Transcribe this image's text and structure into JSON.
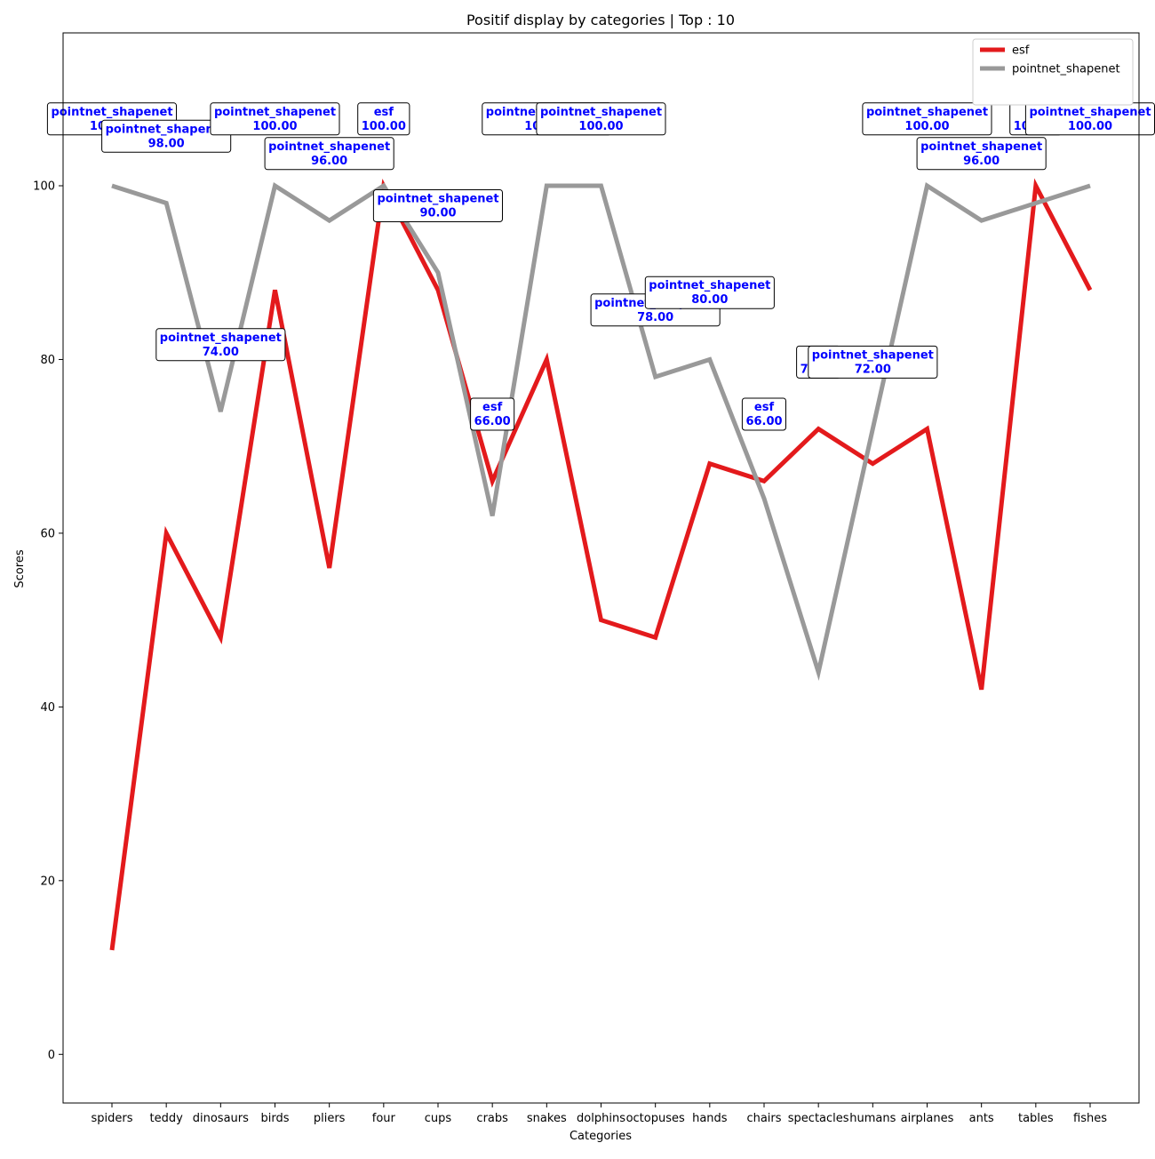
{
  "chart_data": {
    "type": "line",
    "title": "Positif display by categories | Top : 10",
    "xlabel": "Categories",
    "ylabel": "Scores",
    "ylim": [
      -5.6,
      117.6
    ],
    "yticks": [
      0,
      20,
      40,
      60,
      80,
      100
    ],
    "grid": false,
    "legend": "top-right",
    "categories": [
      "spiders",
      "teddy",
      "dinosaurs",
      "birds",
      "pliers",
      "four",
      "cups",
      "crabs",
      "snakes",
      "dolphins",
      "octopuses",
      "hands",
      "chairs",
      "spectacles",
      "humans",
      "airplanes",
      "ants",
      "tables",
      "fishes"
    ],
    "series": [
      {
        "name": "esf",
        "color": "#e31a1c",
        "values": [
          12,
          60,
          48,
          88,
          56,
          100,
          88,
          66,
          80,
          50,
          48,
          68,
          66,
          72,
          68,
          72,
          42,
          100,
          88
        ]
      },
      {
        "name": "pointnet_shapenet",
        "color": "#999999",
        "values": [
          100,
          98,
          74,
          100,
          96,
          100,
          90,
          62,
          100,
          100,
          78,
          80,
          64,
          44,
          72,
          100,
          96,
          98,
          100
        ]
      }
    ],
    "annotations": [
      {
        "category": "spiders",
        "label": "pointnet_shapenet",
        "value": "100.00",
        "y": 107.7
      },
      {
        "category": "teddy",
        "label": "pointnet_shapenet",
        "value": "98.00",
        "y": 105.7
      },
      {
        "category": "dinosaurs",
        "label": "pointnet_shapenet",
        "value": "74.00",
        "y": 81.7
      },
      {
        "category": "birds",
        "label": "pointnet_shapenet",
        "value": "100.00",
        "y": 107.7
      },
      {
        "category": "pliers",
        "label": "pointnet_shapenet",
        "value": "96.00",
        "y": 103.7
      },
      {
        "category": "four",
        "label": "esf",
        "value": "100.00",
        "y": 107.7
      },
      {
        "category": "cups",
        "label": "pointnet_shapenet",
        "value": "90.00",
        "y": 97.7
      },
      {
        "category": "crabs",
        "label": "esf",
        "value": "66.00",
        "y": 73.7
      },
      {
        "category": "snakes",
        "label": "pointnet_shapenet",
        "value": "100.00",
        "y": 107.7
      },
      {
        "category": "dolphins",
        "label": "pointnet_shapenet",
        "value": "100.00",
        "y": 107.7
      },
      {
        "category": "octopuses",
        "label": "pointnet_shapenet",
        "value": "78.00",
        "y": 85.7
      },
      {
        "category": "hands",
        "label": "pointnet_shapenet",
        "value": "80.00",
        "y": 87.7
      },
      {
        "category": "chairs",
        "label": "esf",
        "value": "66.00",
        "y": 73.7
      },
      {
        "category": "spectacles",
        "label": "esf",
        "value": "72.00",
        "y": 79.7
      },
      {
        "category": "humans",
        "label": "pointnet_shapenet",
        "value": "72.00",
        "y": 79.7
      },
      {
        "category": "airplanes",
        "label": "pointnet_shapenet",
        "value": "100.00",
        "y": 107.7
      },
      {
        "category": "ants",
        "label": "pointnet_shapenet",
        "value": "96.00",
        "y": 103.7
      },
      {
        "category": "tables",
        "label": "esf",
        "value": "100.00",
        "y": 107.7
      },
      {
        "category": "fishes",
        "label": "pointnet_shapenet",
        "value": "100.00",
        "y": 107.7
      }
    ]
  }
}
